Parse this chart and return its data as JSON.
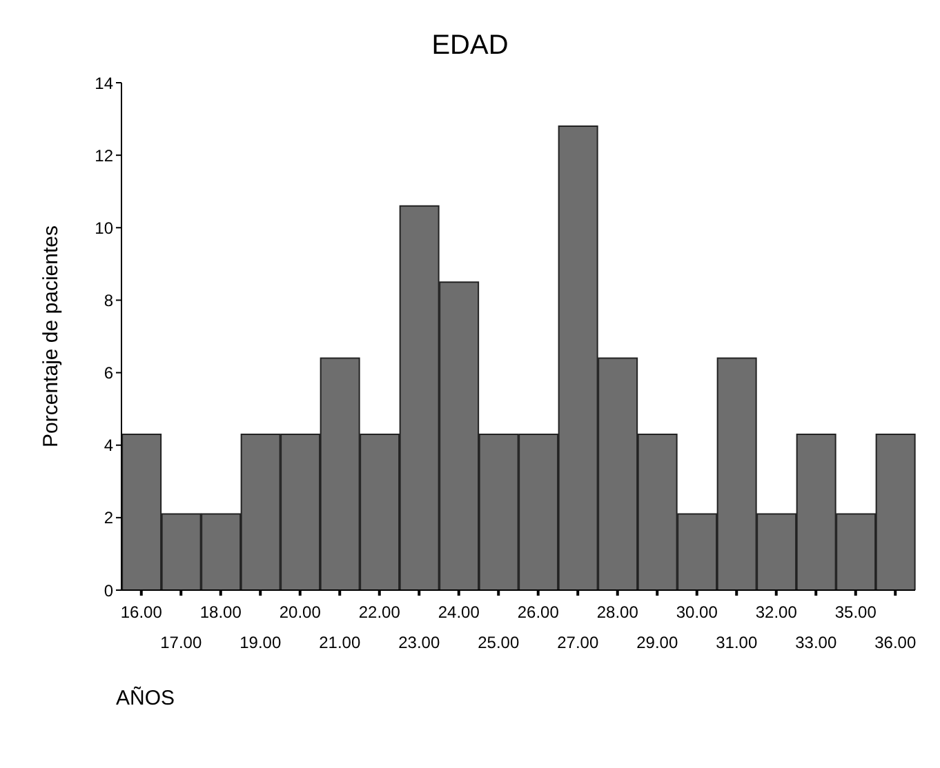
{
  "chart_data": {
    "type": "bar",
    "title": "EDAD",
    "xlabel": "AÑOS",
    "ylabel": "Porcentaje de pacientes",
    "categories": [
      "16.00",
      "17.00",
      "18.00",
      "19.00",
      "20.00",
      "21.00",
      "22.00",
      "23.00",
      "24.00",
      "25.00",
      "26.00",
      "27.00",
      "28.00",
      "29.00",
      "30.00",
      "31.00",
      "32.00",
      "33.00",
      "35.00",
      "36.00"
    ],
    "values": [
      4.3,
      2.1,
      2.1,
      4.3,
      4.3,
      6.4,
      4.3,
      10.6,
      8.5,
      4.3,
      4.3,
      12.8,
      6.4,
      4.3,
      2.1,
      6.4,
      2.1,
      4.3,
      2.1,
      4.3
    ],
    "color": "#6e6e6e",
    "ylim": [
      0,
      14
    ],
    "yticks": [
      0,
      2,
      4,
      6,
      8,
      10,
      12,
      14
    ],
    "grid": false,
    "legend": false
  }
}
